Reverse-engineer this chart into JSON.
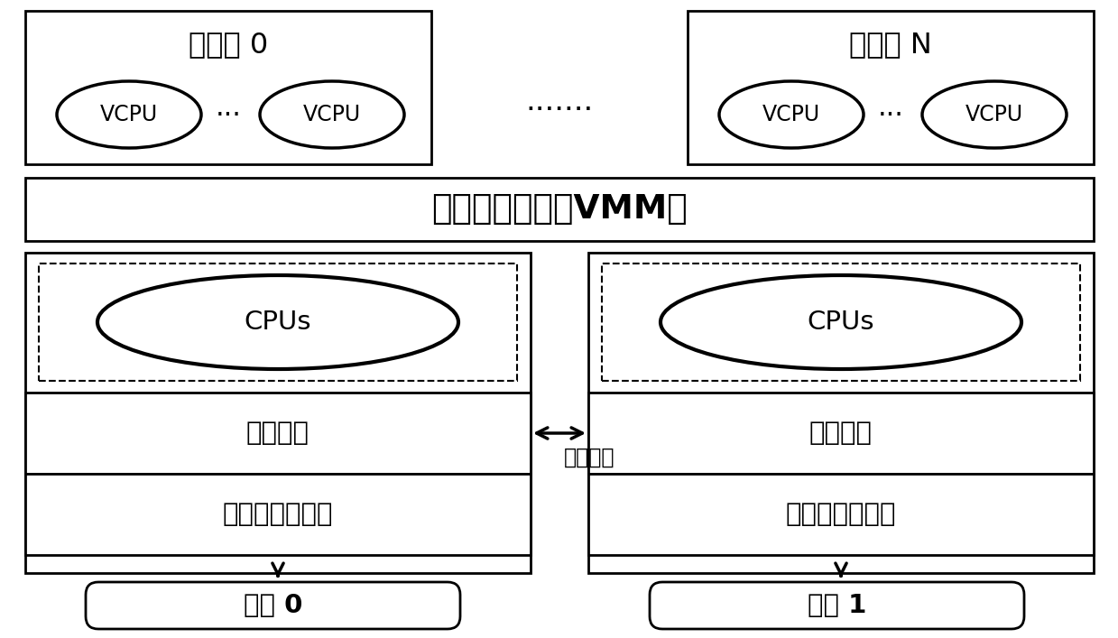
{
  "bg_color": "#ffffff",
  "vm0_label": "虚拟机 0",
  "vmn_label": "虚拟机 N",
  "vmm_label": "虚拟机监控器（VMM）",
  "vcpu_label": "VCPU",
  "dots_vcpu": "···",
  "dots_between": ".......",
  "cpus_label": "CPUs",
  "shared_cache_label": "共享缓存",
  "mem_ctrl_label": "内存访问控制器",
  "mem0_label": "内存 0",
  "mem1_label": "内存 1",
  "interconnect_label": "互连总线",
  "fig_width": 12.39,
  "fig_height": 7.07,
  "dpi": 100
}
